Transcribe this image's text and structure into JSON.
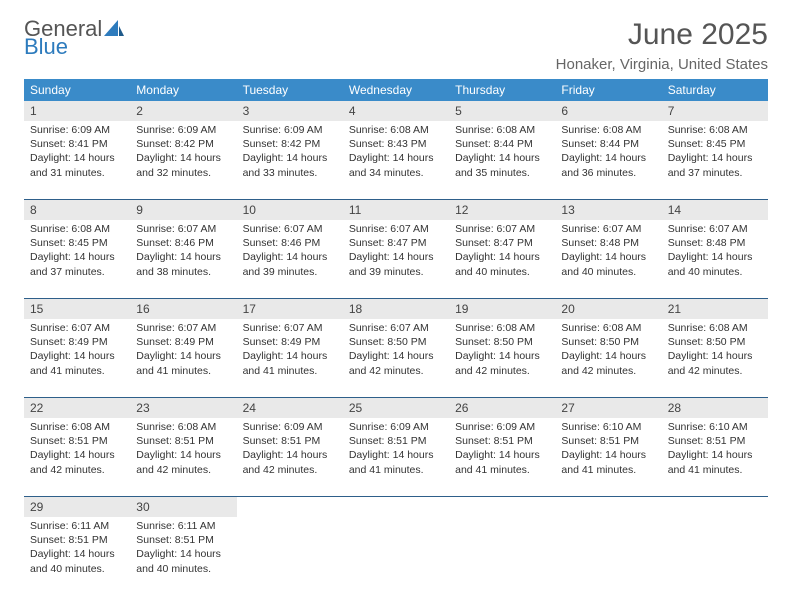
{
  "logo": {
    "line1": "General",
    "line2": "Blue"
  },
  "title": "June 2025",
  "location": "Honaker, Virginia, United States",
  "header_color": "#3a8bc9",
  "week_border_color": "#2e5f8a",
  "daynum_bg": "#e9e9e9",
  "text_color": "#333333",
  "day_names": [
    "Sunday",
    "Monday",
    "Tuesday",
    "Wednesday",
    "Thursday",
    "Friday",
    "Saturday"
  ],
  "weeks": [
    [
      {
        "n": "1",
        "sr": "6:09 AM",
        "ss": "8:41 PM",
        "dl": "14 hours and 31 minutes."
      },
      {
        "n": "2",
        "sr": "6:09 AM",
        "ss": "8:42 PM",
        "dl": "14 hours and 32 minutes."
      },
      {
        "n": "3",
        "sr": "6:09 AM",
        "ss": "8:42 PM",
        "dl": "14 hours and 33 minutes."
      },
      {
        "n": "4",
        "sr": "6:08 AM",
        "ss": "8:43 PM",
        "dl": "14 hours and 34 minutes."
      },
      {
        "n": "5",
        "sr": "6:08 AM",
        "ss": "8:44 PM",
        "dl": "14 hours and 35 minutes."
      },
      {
        "n": "6",
        "sr": "6:08 AM",
        "ss": "8:44 PM",
        "dl": "14 hours and 36 minutes."
      },
      {
        "n": "7",
        "sr": "6:08 AM",
        "ss": "8:45 PM",
        "dl": "14 hours and 37 minutes."
      }
    ],
    [
      {
        "n": "8",
        "sr": "6:08 AM",
        "ss": "8:45 PM",
        "dl": "14 hours and 37 minutes."
      },
      {
        "n": "9",
        "sr": "6:07 AM",
        "ss": "8:46 PM",
        "dl": "14 hours and 38 minutes."
      },
      {
        "n": "10",
        "sr": "6:07 AM",
        "ss": "8:46 PM",
        "dl": "14 hours and 39 minutes."
      },
      {
        "n": "11",
        "sr": "6:07 AM",
        "ss": "8:47 PM",
        "dl": "14 hours and 39 minutes."
      },
      {
        "n": "12",
        "sr": "6:07 AM",
        "ss": "8:47 PM",
        "dl": "14 hours and 40 minutes."
      },
      {
        "n": "13",
        "sr": "6:07 AM",
        "ss": "8:48 PM",
        "dl": "14 hours and 40 minutes."
      },
      {
        "n": "14",
        "sr": "6:07 AM",
        "ss": "8:48 PM",
        "dl": "14 hours and 40 minutes."
      }
    ],
    [
      {
        "n": "15",
        "sr": "6:07 AM",
        "ss": "8:49 PM",
        "dl": "14 hours and 41 minutes."
      },
      {
        "n": "16",
        "sr": "6:07 AM",
        "ss": "8:49 PM",
        "dl": "14 hours and 41 minutes."
      },
      {
        "n": "17",
        "sr": "6:07 AM",
        "ss": "8:49 PM",
        "dl": "14 hours and 41 minutes."
      },
      {
        "n": "18",
        "sr": "6:07 AM",
        "ss": "8:50 PM",
        "dl": "14 hours and 42 minutes."
      },
      {
        "n": "19",
        "sr": "6:08 AM",
        "ss": "8:50 PM",
        "dl": "14 hours and 42 minutes."
      },
      {
        "n": "20",
        "sr": "6:08 AM",
        "ss": "8:50 PM",
        "dl": "14 hours and 42 minutes."
      },
      {
        "n": "21",
        "sr": "6:08 AM",
        "ss": "8:50 PM",
        "dl": "14 hours and 42 minutes."
      }
    ],
    [
      {
        "n": "22",
        "sr": "6:08 AM",
        "ss": "8:51 PM",
        "dl": "14 hours and 42 minutes."
      },
      {
        "n": "23",
        "sr": "6:08 AM",
        "ss": "8:51 PM",
        "dl": "14 hours and 42 minutes."
      },
      {
        "n": "24",
        "sr": "6:09 AM",
        "ss": "8:51 PM",
        "dl": "14 hours and 42 minutes."
      },
      {
        "n": "25",
        "sr": "6:09 AM",
        "ss": "8:51 PM",
        "dl": "14 hours and 41 minutes."
      },
      {
        "n": "26",
        "sr": "6:09 AM",
        "ss": "8:51 PM",
        "dl": "14 hours and 41 minutes."
      },
      {
        "n": "27",
        "sr": "6:10 AM",
        "ss": "8:51 PM",
        "dl": "14 hours and 41 minutes."
      },
      {
        "n": "28",
        "sr": "6:10 AM",
        "ss": "8:51 PM",
        "dl": "14 hours and 41 minutes."
      }
    ],
    [
      {
        "n": "29",
        "sr": "6:11 AM",
        "ss": "8:51 PM",
        "dl": "14 hours and 40 minutes."
      },
      {
        "n": "30",
        "sr": "6:11 AM",
        "ss": "8:51 PM",
        "dl": "14 hours and 40 minutes."
      },
      null,
      null,
      null,
      null,
      null
    ]
  ],
  "labels": {
    "sunrise": "Sunrise:",
    "sunset": "Sunset:",
    "daylight": "Daylight:"
  }
}
